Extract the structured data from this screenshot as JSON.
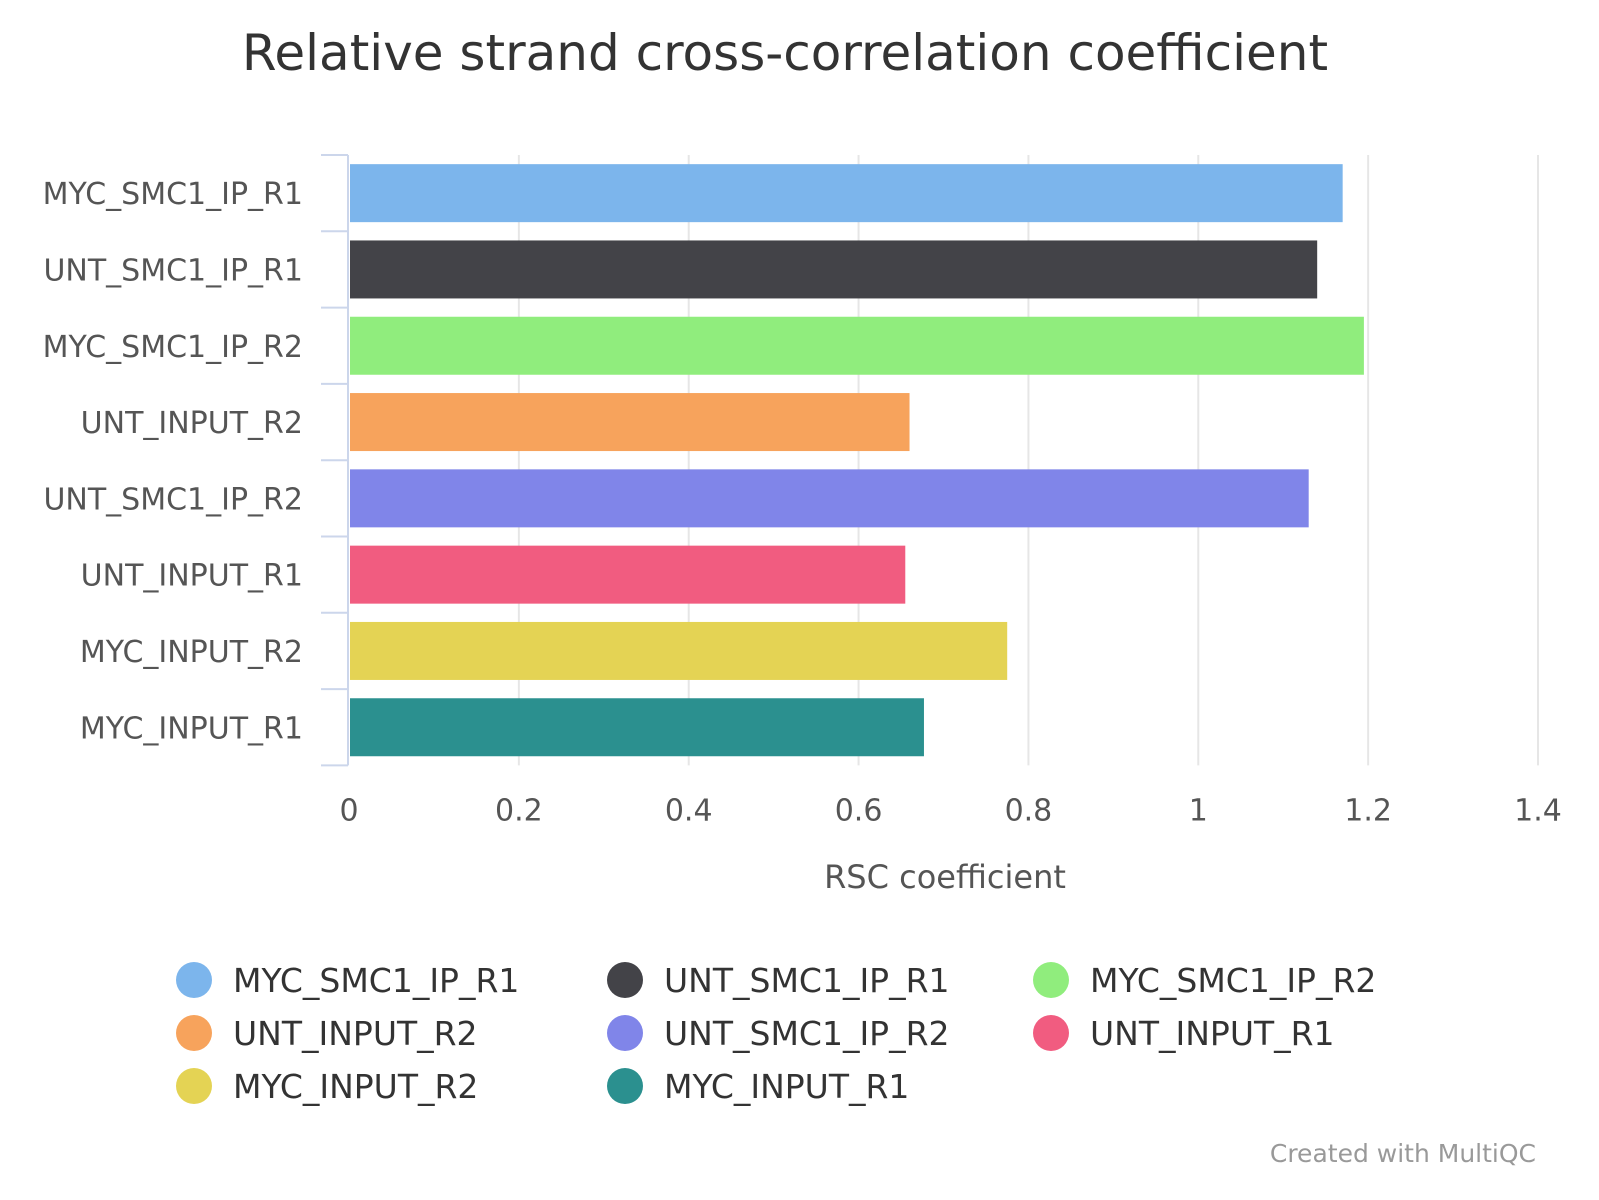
{
  "chart_data": {
    "type": "bar",
    "orientation": "horizontal",
    "title": "Relative strand cross-correlation coefficient",
    "xlabel": "RSC coefficient",
    "ylabel": "",
    "xlim": [
      0,
      1.4
    ],
    "x_ticks": [
      "0",
      "0.2",
      "0.4",
      "0.6",
      "0.8",
      "1",
      "1.2",
      "1.4"
    ],
    "x_tick_values": [
      0,
      0.2,
      0.4,
      0.6,
      0.8,
      1,
      1.2,
      1.4
    ],
    "grid": true,
    "legend_position": "bottom",
    "categories": [
      "MYC_SMC1_IP_R1",
      "UNT_SMC1_IP_R1",
      "MYC_SMC1_IP_R2",
      "UNT_INPUT_R2",
      "UNT_SMC1_IP_R2",
      "UNT_INPUT_R1",
      "MYC_INPUT_R2",
      "MYC_INPUT_R1"
    ],
    "values": [
      1.17,
      1.14,
      1.195,
      0.66,
      1.13,
      0.655,
      0.775,
      0.677
    ],
    "colors": [
      "#7cb5ec",
      "#434348",
      "#90ed7d",
      "#f7a35c",
      "#8085e9",
      "#f15c80",
      "#e4d354",
      "#2b908f"
    ],
    "credit": "Created with MultiQC"
  }
}
